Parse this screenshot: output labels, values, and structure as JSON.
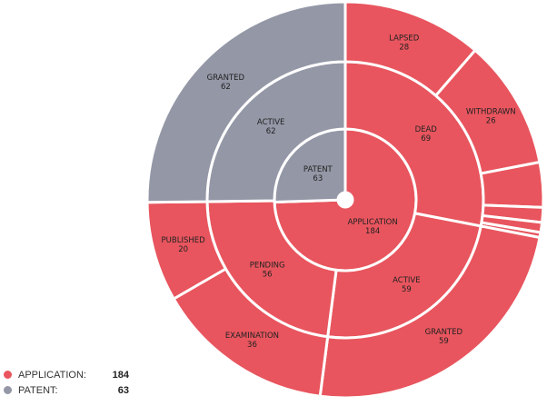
{
  "chart_data": {
    "type": "sunburst",
    "colors": {
      "APPLICATION": "#e8555e",
      "PATENT": "#9497a6"
    },
    "rings": [
      [
        {
          "name": "APPLICATION",
          "value": 184,
          "group": "APPLICATION"
        },
        {
          "name": "PATENT",
          "value": 63,
          "group": "PATENT"
        }
      ],
      [
        {
          "name": "DEAD",
          "value": 69,
          "group": "APPLICATION"
        },
        {
          "name": "ACTIVE",
          "value": 59,
          "group": "APPLICATION"
        },
        {
          "name": "PENDING",
          "value": 56,
          "group": "APPLICATION"
        },
        {
          "name": "ACTIVE",
          "value": 62,
          "group": "PATENT"
        }
      ],
      [
        {
          "name": "LAPSED",
          "value": 28,
          "group": "APPLICATION"
        },
        {
          "name": "WITHDRAWN",
          "value": 26,
          "group": "APPLICATION"
        },
        {
          "name": "",
          "value": 9,
          "group": "APPLICATION"
        },
        {
          "name": "",
          "value": 3,
          "group": "APPLICATION"
        },
        {
          "name": "",
          "value": 2,
          "group": "APPLICATION"
        },
        {
          "name": "",
          "value": 1,
          "group": "APPLICATION"
        },
        {
          "name": "GRANTED",
          "value": 59,
          "group": "APPLICATION"
        },
        {
          "name": "EXAMINATION",
          "value": 36,
          "group": "APPLICATION"
        },
        {
          "name": "PUBLISHED",
          "value": 20,
          "group": "APPLICATION"
        },
        {
          "name": "GRANTED",
          "value": 62,
          "group": "PATENT"
        }
      ]
    ],
    "legend": [
      {
        "label": "APPLICATION:",
        "value": "184",
        "color": "#e8555e"
      },
      {
        "label": "PATENT:",
        "value": "63",
        "color": "#9497a6"
      }
    ]
  }
}
